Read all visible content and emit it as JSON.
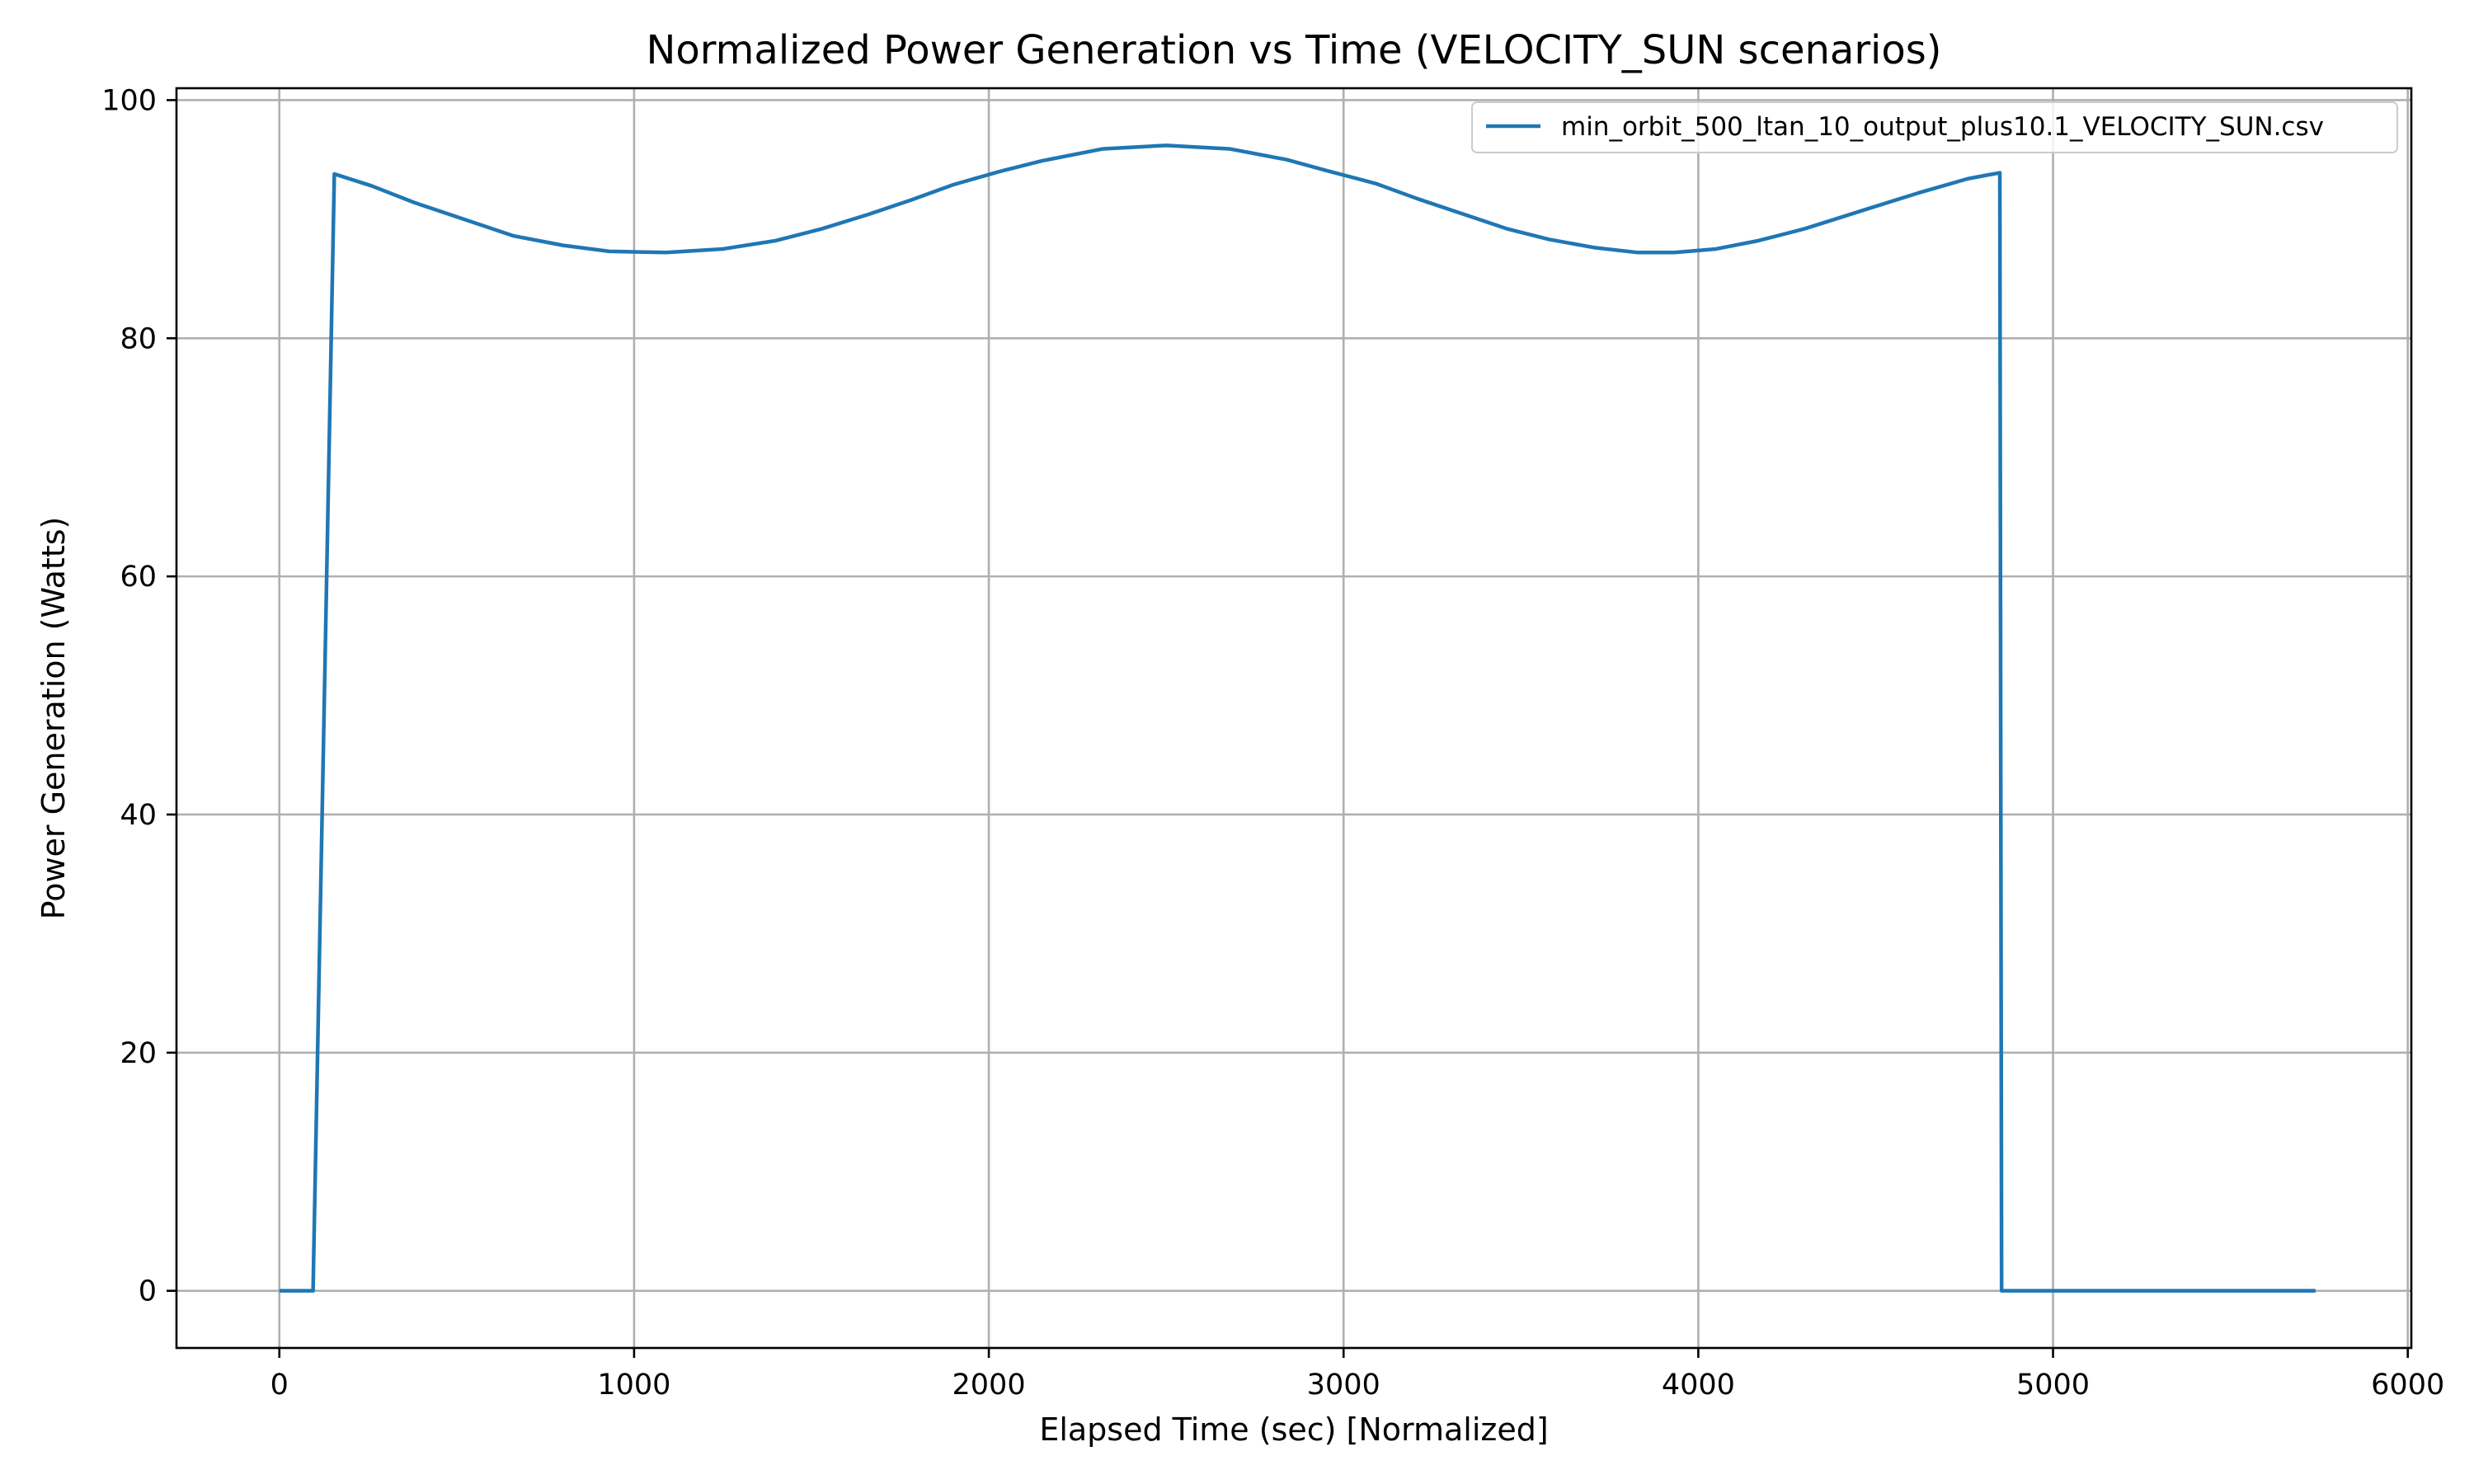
{
  "chart_data": {
    "type": "line",
    "title": "Normalized Power Generation vs Time (VELOCITY_SUN scenarios)",
    "xlabel": "Elapsed Time (sec) [Normalized]",
    "ylabel": "Power Generation (Watts)",
    "xlim": [
      -290,
      6010
    ],
    "ylim": [
      -4.8,
      101
    ],
    "xticks": [
      0,
      1000,
      2000,
      3000,
      4000,
      5000,
      6000
    ],
    "yticks": [
      0,
      20,
      40,
      60,
      80,
      100
    ],
    "xtick_labels": [
      "0",
      "1000",
      "2000",
      "3000",
      "4000",
      "5000",
      "6000"
    ],
    "ytick_labels": [
      "0",
      "20",
      "40",
      "60",
      "80",
      "100"
    ],
    "grid": true,
    "legend_position": "upper-right",
    "series_color": "#1f77b4",
    "series": [
      {
        "name": "min_orbit_500_ltan_10_output_plus10.1_VELOCITY_SUN.csv",
        "x": [
          0,
          95,
          155,
          260,
          380,
          520,
          660,
          800,
          930,
          1090,
          1250,
          1400,
          1530,
          1660,
          1780,
          1900,
          2030,
          2150,
          2320,
          2500,
          2680,
          2840,
          2950,
          3090,
          3210,
          3330,
          3460,
          3580,
          3710,
          3830,
          3930,
          4050,
          4170,
          4300,
          4470,
          4620,
          4760,
          4850,
          4855,
          5000,
          5200,
          5400,
          5600,
          5740
        ],
        "y": [
          0,
          0,
          93.8,
          92.8,
          91.4,
          90.0,
          88.6,
          87.8,
          87.3,
          87.2,
          87.5,
          88.2,
          89.2,
          90.4,
          91.6,
          92.9,
          94.0,
          94.9,
          95.9,
          96.2,
          95.9,
          95.0,
          94.1,
          93.0,
          91.7,
          90.5,
          89.2,
          88.3,
          87.6,
          87.2,
          87.2,
          87.5,
          88.2,
          89.2,
          90.8,
          92.2,
          93.4,
          93.9,
          0,
          0,
          0,
          0,
          0,
          0
        ]
      }
    ]
  }
}
